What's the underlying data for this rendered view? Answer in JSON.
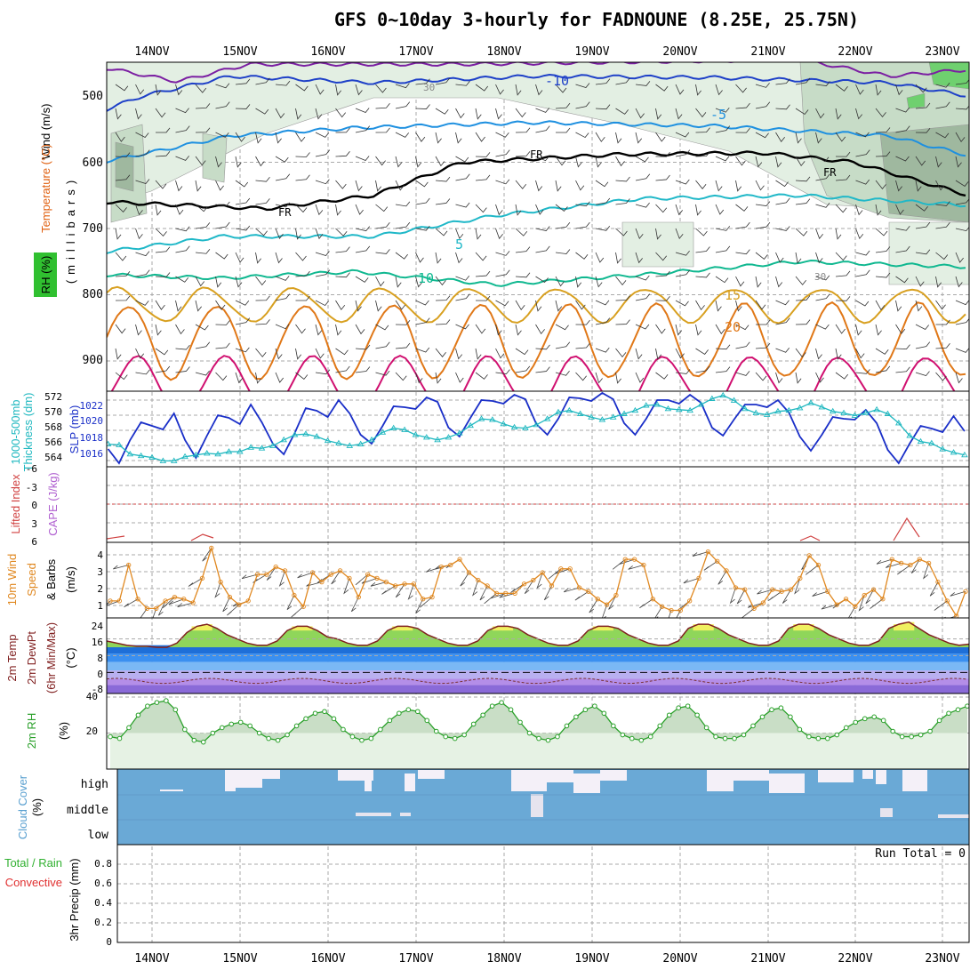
{
  "title": "GFS 0~10day 3-hourly for FADNOUNE (8.25E, 25.75N)",
  "days": [
    "14NOV",
    "15NOV",
    "16NOV",
    "17NOV",
    "18NOV",
    "19NOV",
    "20NOV",
    "21NOV",
    "22NOV",
    "23NOV"
  ],
  "colors": {
    "grid": "#aaaaaa",
    "rh_fill_light": "#e3efe3",
    "rh_fill_mid": "#c7dcc7",
    "rh_fill_dark": "#9fb89f",
    "rh_fill_bright": "#6fd06f",
    "iso_m15": "#7b1fa2",
    "iso_m10": "#1e40c8",
    "iso_m5": "#1e90e0",
    "iso_0": "#000000",
    "iso_5": "#20b8c8",
    "iso_10": "#10b890",
    "iso_15": "#d8a020",
    "iso_20": "#e07818",
    "iso_25": "#d01070",
    "slp": "#1a2fc8",
    "thickness": "#20b8c0",
    "lifted": "#d04040",
    "wind_speed": "#e08820",
    "temp_fill": "#8fd65a",
    "temp_peak": "#f0f060",
    "temp_line": "#802020",
    "rh_line": "#2aa02a",
    "cloud": "#6aa9d6",
    "cloud_clear": "#f4f0f8"
  },
  "panels": {
    "upper": {
      "y_label_wind": "Wind (m/s)",
      "y_label_temp": "Temperature (°C)",
      "y_label_rh": "RH (%)",
      "y_label_mb": "(millibars)",
      "ticks": [
        "500",
        "600",
        "700",
        "800",
        "900"
      ],
      "contour_labels": [
        "-10",
        "-5",
        "FR",
        "FR",
        "FR",
        "5",
        "10",
        "15",
        "20",
        "30",
        "30"
      ]
    },
    "slp": {
      "y_label_slp": "SLP (mb)",
      "y_label_thick": "1000-500mb",
      "y_label_thick2": "Thickness (dm)",
      "ticks_slp": [
        "1022",
        "1020",
        "1018",
        "1016"
      ],
      "ticks_thick": [
        "572",
        "570",
        "568",
        "566",
        "564"
      ]
    },
    "lifted": {
      "y_label": "Lifted Index",
      "y_label_cape": "CAPE (J/kg)",
      "ticks": [
        "-6",
        "-3",
        "0",
        "3",
        "6"
      ]
    },
    "wind10m": {
      "y_label_1": "10m Wind",
      "y_label_2": "Speed",
      "y_label_3": "& Barbs",
      "y_label_units": "(m/s)",
      "ticks": [
        "4",
        "3",
        "2",
        "1"
      ]
    },
    "temp2m": {
      "y_label_1": "2m Temp",
      "y_label_2": "2m DewPt",
      "y_label_3": "(6hr Min/Max)",
      "y_label_units": "(°C)",
      "ticks": [
        "24",
        "16",
        "8",
        "0",
        "-8"
      ]
    },
    "rh2m": {
      "y_label": "2m RH",
      "y_label_units": "(%)",
      "ticks": [
        "40",
        "20"
      ]
    },
    "cloud": {
      "y_label": "Cloud Cover",
      "y_label_units": "(%)",
      "levels": [
        "high",
        "middle",
        "low"
      ]
    },
    "precip": {
      "y_label_1": "Total / Rain",
      "y_label_2": "Convective",
      "y_label_3": "3hr Precip (mm)",
      "ticks": [
        "0.8",
        "0.6",
        "0.4",
        "0.2",
        "0"
      ],
      "run_total": "Run Total = 0"
    }
  },
  "chart_data": [
    {
      "type": "line",
      "name": "slp",
      "title": "SLP (mb)",
      "ylim": [
        1015,
        1023.5
      ],
      "x_start": "13NOV 12Z",
      "step_hours": 3,
      "values": [
        1017,
        1015.4,
        1018,
        1020,
        1019.6,
        1019.2,
        1021,
        1018,
        1016,
        1018.5,
        1020.8,
        1020.5,
        1019.8,
        1022,
        1020,
        1017.6,
        1016.4,
        1018.8,
        1021.6,
        1021.3,
        1020.6,
        1022.5,
        1021,
        1018.6,
        1017.6,
        1019.6,
        1021.8,
        1021.7,
        1021.5,
        1022.8,
        1022.3,
        1019.4,
        1018.4,
        1020.5,
        1022.5,
        1022.4,
        1022.1,
        1023.1,
        1022.6,
        1019.8,
        1018.6,
        1020.4,
        1022.8,
        1022.7,
        1022.4,
        1023.3,
        1022.6,
        1019.9,
        1018.6,
        1020.4,
        1022.5,
        1022.5,
        1022.1,
        1023.1,
        1022.2,
        1019.4,
        1018.5,
        1020.3,
        1022.0,
        1022.0,
        1021.7,
        1022.5,
        1021.1,
        1018.4,
        1016.8,
        1018.6,
        1020.6,
        1020.4,
        1020.3,
        1021.4,
        1019.9,
        1016.9,
        1015.4,
        1017.6,
        1019.6,
        1019.3,
        1018.9,
        1020.7,
        1019.0
      ]
    },
    {
      "type": "line",
      "name": "thickness",
      "title": "1000-500mb Thickness (dm)",
      "ylim": [
        563.5,
        572.5
      ],
      "x_start": "13NOV 12Z",
      "step_hours": 3,
      "values": [
        566.2,
        566.1,
        565.0,
        564.8,
        564.6,
        564.2,
        564.2,
        564.7,
        564.9,
        565.1,
        565.0,
        565.3,
        565.3,
        565.8,
        565.7,
        566.0,
        566.7,
        567.3,
        567.4,
        567.1,
        566.6,
        566.3,
        566.0,
        566.2,
        566.7,
        567.6,
        568.1,
        567.9,
        567.3,
        567.0,
        566.7,
        567.0,
        567.5,
        568.4,
        569.2,
        569.1,
        568.6,
        568.2,
        568.1,
        568.5,
        569.2,
        570.0,
        570.2,
        569.8,
        569.4,
        569.1,
        569.4,
        569.8,
        570.2,
        570.8,
        570.9,
        570.4,
        570.3,
        570.2,
        570.9,
        571.6,
        572.0,
        571.4,
        570.4,
        569.9,
        569.7,
        570.1,
        570.2,
        570.5,
        571.1,
        570.6,
        570.1,
        569.9,
        569.6,
        569.9,
        570.3,
        569.8,
        568.7,
        567.2,
        566.5,
        566.3,
        565.6,
        565.2,
        564.9
      ]
    },
    {
      "type": "line",
      "name": "10m_wind_speed",
      "title": "10m Wind Speed & Barbs (m/s)",
      "ylim": [
        0.6,
        4.6
      ],
      "x_start": "13NOV 12Z",
      "step_hours": 3,
      "values": [
        1.5,
        1.5,
        3.4,
        1.6,
        1.1,
        1.1,
        1.5,
        1.7,
        1.6,
        1.4,
        2.7,
        4.3,
        2.5,
        1.7,
        1.3,
        1.5,
        2.9,
        2.9,
        3.3,
        3.1,
        1.8,
        1.2,
        3.0,
        2.5,
        2.9,
        3.1,
        2.7,
        1.7,
        2.9,
        2.7,
        2.5,
        2.3,
        2.4,
        2.4,
        1.6,
        1.7,
        3.3,
        3.4,
        3.7,
        3.0,
        2.6,
        2.3,
        1.9,
        1.9,
        1.9,
        2.4,
        2.6,
        3.0,
        2.3,
        3.2,
        3.2,
        2.2,
        2.0,
        1.6,
        1.3,
        1.8,
        3.7,
        3.7,
        3.4,
        1.6,
        1.2,
        1.0,
        1.0,
        1.5,
        2.7,
        4.1,
        3.6,
        3.1,
        2.2,
        2.1,
        1.1,
        1.4,
        2.1,
        2.0,
        2.1,
        2.7,
        3.9,
        3.4,
        2.0,
        1.3,
        1.6,
        1.2,
        1.8,
        2.1,
        1.6,
        3.7,
        3.5,
        3.4,
        3.7,
        3.5,
        2.5,
        1.5,
        0.7,
        2.0
      ]
    },
    {
      "type": "area",
      "name": "2m_temp",
      "title": "2m Temp (°C)",
      "ylim": [
        -10,
        26
      ],
      "x_start": "13NOV 12Z",
      "step_hours": 3,
      "values": [
        15,
        14,
        13,
        12.5,
        12.5,
        12,
        12,
        14,
        19,
        22,
        23,
        21,
        18,
        16,
        14,
        13,
        13,
        15,
        20,
        22,
        22,
        20,
        17,
        16,
        14,
        13,
        13,
        15,
        20,
        22,
        22,
        21,
        18,
        16,
        14,
        13,
        13,
        15,
        20,
        22,
        22,
        21,
        18,
        16,
        14,
        13,
        13,
        15,
        20,
        22,
        22,
        21,
        18,
        16,
        14,
        13,
        13,
        15,
        21,
        23,
        23,
        21,
        18,
        16,
        14,
        13,
        13,
        15,
        21,
        23,
        23,
        21,
        18,
        16,
        14,
        13,
        13,
        15,
        21,
        23,
        24,
        21,
        18,
        16,
        14,
        13,
        13.5
      ]
    },
    {
      "type": "area",
      "name": "2m_rh",
      "title": "2m RH (%)",
      "ylim": [
        0,
        42
      ],
      "x_start": "13NOV 12Z",
      "step_hours": 3,
      "values": [
        18,
        17,
        23,
        30,
        35,
        37,
        38,
        33,
        22,
        16,
        15,
        20,
        23,
        25,
        26,
        24,
        20,
        17,
        16,
        19,
        24,
        28,
        31,
        32,
        28,
        22,
        18,
        16,
        17,
        22,
        27,
        31,
        33,
        32,
        27,
        21,
        18,
        17,
        19,
        25,
        30,
        35,
        37,
        33,
        26,
        20,
        17,
        16,
        18,
        24,
        29,
        33,
        35,
        31,
        24,
        19,
        17,
        16,
        18,
        24,
        30,
        34,
        35,
        30,
        23,
        18,
        17,
        17,
        19,
        24,
        29,
        33,
        34,
        29,
        22,
        18,
        17,
        17,
        19,
        23,
        26,
        28,
        29,
        27,
        21,
        18,
        18,
        19,
        21,
        27,
        31,
        33,
        35
      ]
    }
  ]
}
